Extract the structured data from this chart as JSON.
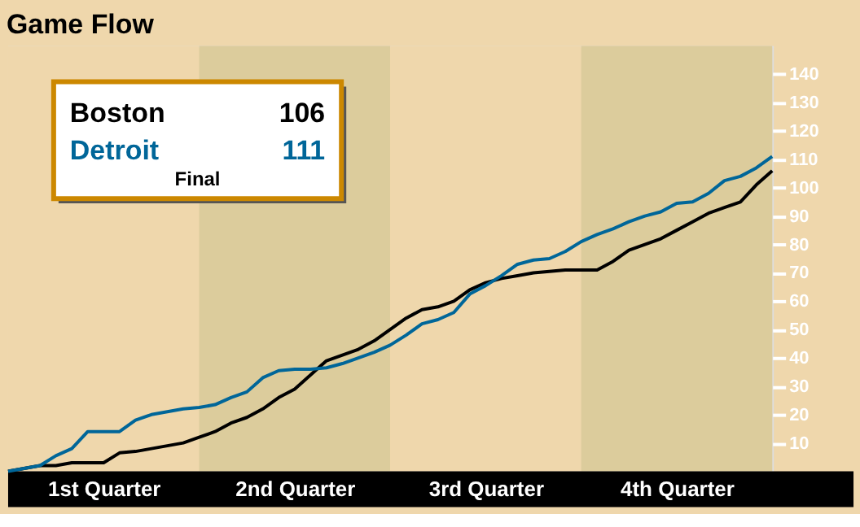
{
  "chart_data": {
    "type": "line",
    "title": "Game Flow",
    "categories": [
      null,
      null,
      null,
      null,
      null,
      null,
      "1st Quarter",
      null,
      null,
      null,
      null,
      null,
      null,
      null,
      null,
      null,
      null,
      null,
      "2nd Quarter",
      null,
      null,
      null,
      null,
      null,
      null,
      null,
      null,
      null,
      null,
      null,
      "3rd Quarter",
      null,
      null,
      null,
      null,
      null,
      null,
      null,
      null,
      null,
      null,
      null,
      "4th Quarter",
      null,
      null,
      null,
      null,
      null,
      null
    ],
    "ylim": [
      0,
      150
    ],
    "yticks": [
      10,
      20,
      30,
      40,
      50,
      60,
      70,
      80,
      90,
      100,
      110,
      120,
      130,
      140
    ],
    "grid": false,
    "annotations": [
      "106",
      "111",
      "Final"
    ],
    "series": [
      {
        "name": "Boston",
        "color": "#000000",
        "values": [
          0,
          1,
          2,
          2,
          3,
          3,
          3,
          6.5,
          7,
          8,
          9,
          10,
          12,
          14,
          17,
          19,
          22,
          26,
          29,
          34,
          39,
          41,
          43,
          46,
          50,
          54,
          57,
          58,
          60,
          64,
          66.5,
          68,
          69,
          70,
          70.5,
          71,
          71,
          71,
          74,
          78,
          80,
          82,
          85,
          88,
          91,
          93,
          95,
          101,
          106
        ]
      },
      {
        "name": "Detroit",
        "color": "#006699",
        "values": [
          0,
          1,
          2,
          5.5,
          8,
          14,
          14,
          14,
          18,
          20,
          21,
          22,
          22.5,
          23.5,
          26,
          28,
          33,
          35.5,
          36,
          36,
          36.5,
          38,
          40,
          42,
          44.5,
          48,
          52,
          53.5,
          56,
          62.5,
          65.5,
          69,
          73,
          74.5,
          75,
          77.5,
          81,
          83.5,
          85.5,
          88,
          90,
          91.5,
          94.5,
          95,
          98,
          102.5,
          104,
          107,
          111
        ]
      }
    ]
  }
}
